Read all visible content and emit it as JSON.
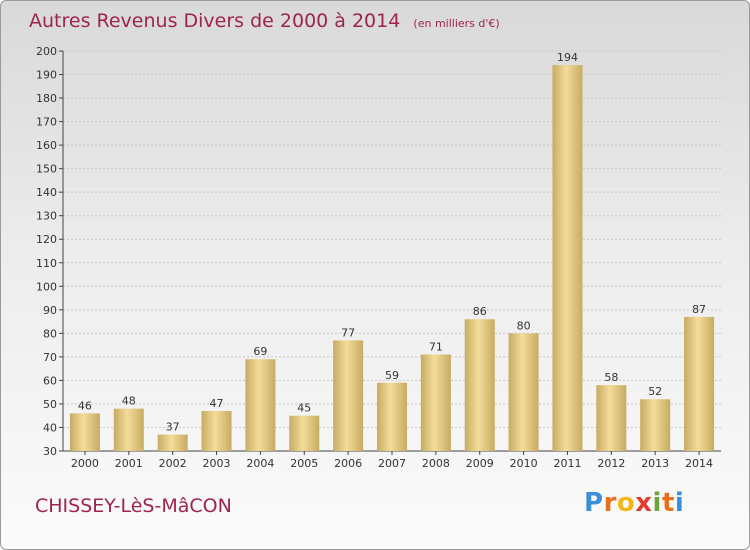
{
  "title": "Autres Revenus Divers de 2000 à 2014",
  "unit": "(en milliers d'€)",
  "commune": "CHISSEY-LèS-MâCON",
  "logo": {
    "letters": [
      "P",
      "r",
      "o",
      "x",
      "i",
      "t",
      "i"
    ],
    "colors": [
      "#3a8fd8",
      "#e8701a",
      "#f2b61c",
      "#e23c2e",
      "#6aa73a",
      "#e8701a",
      "#3a8fd8"
    ]
  },
  "colors": {
    "title": "#9e2450",
    "bar_light": "#f4dc9a",
    "bar_dark": "#c7ab62",
    "axis": "#444444",
    "grid": "#c8c8c8"
  },
  "chart_data": {
    "type": "bar",
    "categories": [
      "2000",
      "2001",
      "2002",
      "2003",
      "2004",
      "2005",
      "2006",
      "2007",
      "2008",
      "2009",
      "2010",
      "2011",
      "2012",
      "2013",
      "2014"
    ],
    "values": [
      46,
      48,
      37,
      47,
      69,
      45,
      77,
      59,
      71,
      86,
      80,
      194,
      58,
      52,
      87
    ],
    "ylim": [
      30,
      200
    ],
    "ytick_step": 10,
    "grid": true,
    "data_labels": true
  }
}
